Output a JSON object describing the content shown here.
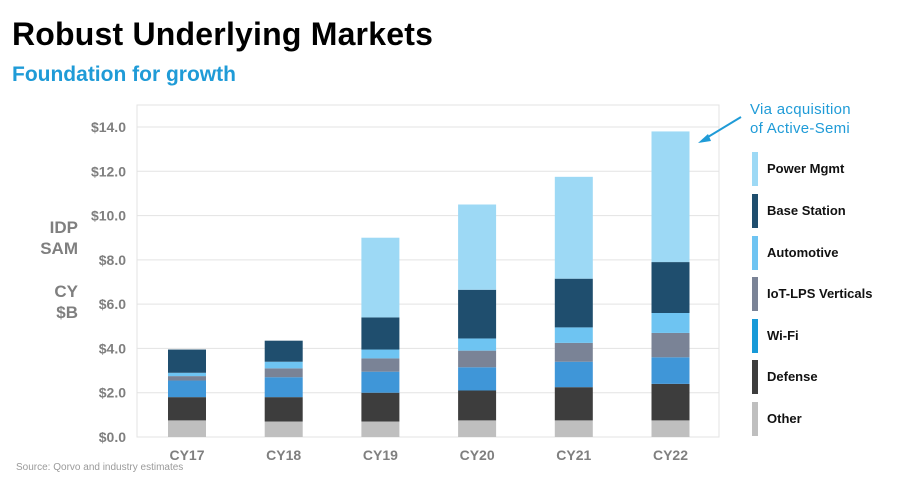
{
  "header": {
    "title": "Robust Underlying Markets",
    "subtitle": "Foundation for growth"
  },
  "y_axis_label": [
    "IDP",
    "SAM",
    "CY",
    "$B"
  ],
  "annotation": [
    "Via acquisition",
    "of Active-Semi"
  ],
  "source": "Source: Qorvo and industry estimates",
  "colors": {
    "Power Mgmt": "#9dd9f5",
    "Base Station": "#1f4e6e",
    "Automotive": "#6ec4f2",
    "IoT-LPS Verticals": "#7a8396",
    "Wi-Fi": "#3f96d8",
    "Defense": "#3d3d3d",
    "Other": "#bfbfbf",
    "accent": "#1f9bd7"
  },
  "legend": [
    {
      "label": "Power Mgmt",
      "color": "#9dd9f5"
    },
    {
      "label": "Base Station",
      "color": "#1f4e6e"
    },
    {
      "label": "Automotive",
      "color": "#6ec4f2"
    },
    {
      "label": "IoT-LPS Verticals",
      "color": "#7a8396"
    },
    {
      "label": "Wi-Fi",
      "color": "#179ad8"
    },
    {
      "label": "Defense",
      "color": "#3d3d3d"
    },
    {
      "label": "Other",
      "color": "#bfbfbf"
    }
  ],
  "chart_data": {
    "type": "bar",
    "stacked": true,
    "title": "Robust Underlying Markets",
    "subtitle": "Foundation for growth",
    "xlabel": "",
    "ylabel": "IDP SAM CY $B",
    "ylim": [
      0,
      14.0
    ],
    "yticks": [
      0,
      2,
      4,
      6,
      8,
      10,
      12,
      14
    ],
    "ytick_labels": [
      "$0.0",
      "$2.0",
      "$4.0",
      "$6.0",
      "$8.0",
      "$10.0",
      "$12.0",
      "$14.0"
    ],
    "grid": true,
    "legend_position": "right",
    "categories": [
      "CY17",
      "CY18",
      "CY19",
      "CY20",
      "CY21",
      "CY22"
    ],
    "series": [
      {
        "name": "Other",
        "values": [
          0.75,
          0.7,
          0.7,
          0.75,
          0.75,
          0.75
        ]
      },
      {
        "name": "Defense",
        "values": [
          1.05,
          1.1,
          1.3,
          1.35,
          1.5,
          1.65
        ]
      },
      {
        "name": "Wi-Fi",
        "values": [
          0.75,
          0.9,
          0.95,
          1.05,
          1.15,
          1.2
        ]
      },
      {
        "name": "IoT-LPS Verticals",
        "values": [
          0.2,
          0.4,
          0.6,
          0.75,
          0.85,
          1.1
        ]
      },
      {
        "name": "Automotive",
        "values": [
          0.15,
          0.3,
          0.4,
          0.55,
          0.7,
          0.9
        ]
      },
      {
        "name": "Base Station",
        "values": [
          1.05,
          0.95,
          1.45,
          2.2,
          2.2,
          2.3
        ]
      },
      {
        "name": "Power Mgmt",
        "values": [
          0,
          0,
          3.6,
          3.85,
          4.6,
          5.9
        ]
      }
    ],
    "annotations": [
      {
        "text": "Via acquisition of Active-Semi",
        "points_to": "CY22 Power Mgmt"
      }
    ]
  }
}
